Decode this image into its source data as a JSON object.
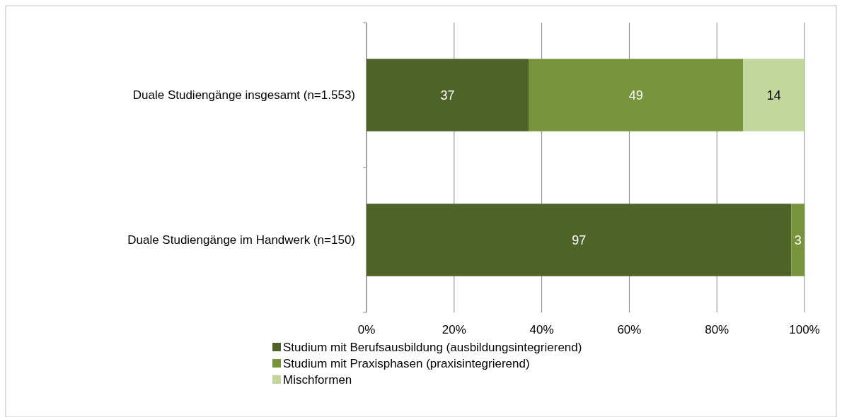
{
  "chart_data": {
    "type": "bar",
    "orientation": "horizontal",
    "stacked": true,
    "categories": [
      "Duale Studiengänge insgesamt (n=1.553)",
      "Duale Studiengänge im Handwerk (n=150)"
    ],
    "series": [
      {
        "name": "Studium mit Berufsausbildung (ausbildungsintegrierend)",
        "color": "#4f6228",
        "values": [
          37,
          97
        ]
      },
      {
        "name": "Studium mit Praxisphasen (praxisintegrierend)",
        "color": "#77933c",
        "values": [
          49,
          3
        ]
      },
      {
        "name": "Mischformen",
        "color": "#c3d69b",
        "values": [
          14,
          null
        ]
      }
    ],
    "xlim": [
      0,
      100
    ],
    "xticks": [
      {
        "value": 0,
        "label": "0%"
      },
      {
        "value": 20,
        "label": "20%"
      },
      {
        "value": 40,
        "label": "40%"
      },
      {
        "value": 60,
        "label": "60%"
      },
      {
        "value": 80,
        "label": "80%"
      },
      {
        "value": 100,
        "label": "100%"
      }
    ],
    "grid": "x",
    "data_labels": true,
    "legend": "bottom"
  }
}
